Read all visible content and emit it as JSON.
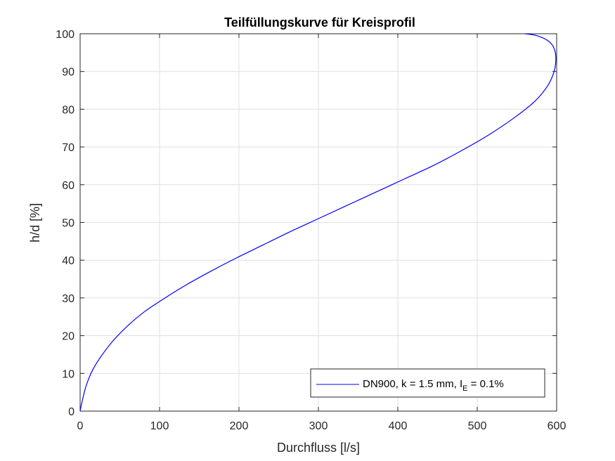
{
  "chart_data": {
    "type": "line",
    "title": "Teilfüllungskurve für Kreisprofil",
    "xlabel": "Durchfluss [l/s]",
    "ylabel": "h/d [%]",
    "xlim": [
      0,
      600
    ],
    "ylim": [
      0,
      100
    ],
    "xticks": [
      0,
      100,
      200,
      300,
      400,
      500,
      600
    ],
    "yticks": [
      0,
      10,
      20,
      30,
      40,
      50,
      60,
      70,
      80,
      90,
      100
    ],
    "grid": true,
    "legend_position": "bottom-right",
    "legend": {
      "main": "DN900, k = 1.5 mm, I",
      "sub": "E",
      "tail": " = 0.1%"
    },
    "series": [
      {
        "name": "DN900, k = 1.5 mm, I_E = 0.1%",
        "color": "#0000ff",
        "x": [
          0,
          3,
          8,
          16,
          28,
          43,
          62,
          82,
          107,
          134,
          164,
          196,
          230,
          264,
          300,
          336,
          372,
          408,
          444,
          480,
          513,
          545,
          572,
          588,
          596,
          599,
          597,
          590,
          575,
          560
        ],
        "y": [
          0,
          3,
          7,
          11,
          15,
          19,
          23,
          26.5,
          30,
          33.5,
          37,
          40.5,
          44,
          47.5,
          51,
          54.5,
          58,
          61.5,
          65,
          69,
          73,
          77.5,
          82,
          86,
          89.5,
          93,
          96,
          98,
          99.5,
          100
        ]
      }
    ]
  }
}
